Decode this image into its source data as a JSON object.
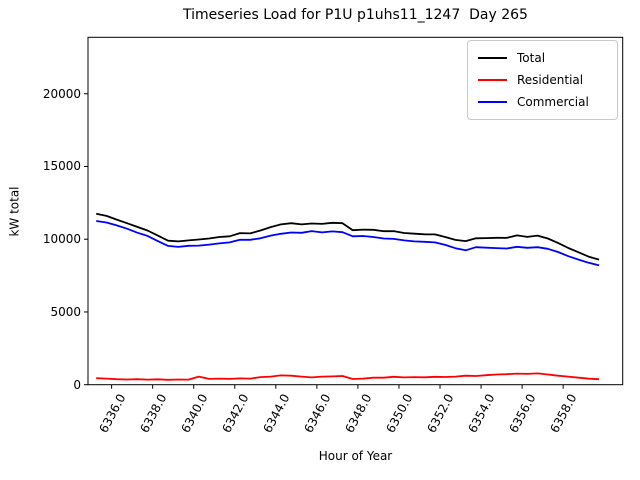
{
  "figure": {
    "title": "Timeseries Load for P1U p1uhs11_1247  Day 265",
    "xlabel": "Hour of Year",
    "ylabel": "kW total"
  },
  "chart_data": {
    "type": "line",
    "title": "Timeseries Load for P1U p1uhs11_1247  Day 265",
    "xlabel": "Hour of Year",
    "ylabel": "kW total",
    "grid": false,
    "legend_position": "upper right",
    "xlim": [
      6334.85,
      6360.9
    ],
    "ylim": [
      0,
      23880
    ],
    "x_ticks": [
      6336,
      6338,
      6340,
      6342,
      6344,
      6346,
      6348,
      6350,
      6352,
      6354,
      6356,
      6358
    ],
    "x_tick_labels": [
      "6336.0",
      "6338.0",
      "6340.0",
      "6342.0",
      "6344.0",
      "6346.0",
      "6348.0",
      "6350.0",
      "6352.0",
      "6354.0",
      "6356.0",
      "6358.0"
    ],
    "y_ticks": [
      0,
      5000,
      10000,
      15000,
      20000
    ],
    "y_tick_labels": [
      "0",
      "5000",
      "10000",
      "15000",
      "20000"
    ],
    "x": [
      6335.25,
      6335.75,
      6336.25,
      6336.75,
      6337.25,
      6337.75,
      6338.25,
      6338.75,
      6339.25,
      6339.75,
      6340.25,
      6340.75,
      6341.25,
      6341.75,
      6342.25,
      6342.75,
      6343.25,
      6343.75,
      6344.25,
      6344.75,
      6345.25,
      6345.75,
      6346.25,
      6346.75,
      6347.25,
      6347.75,
      6348.25,
      6348.75,
      6349.25,
      6349.75,
      6350.25,
      6350.75,
      6351.25,
      6351.75,
      6352.25,
      6352.75,
      6353.25,
      6353.75,
      6354.25,
      6354.75,
      6355.25,
      6355.75,
      6356.25,
      6356.75,
      6357.25,
      6357.75,
      6358.25,
      6358.75,
      6359.25,
      6359.75
    ],
    "series": [
      {
        "name": "Total",
        "color": "#000000",
        "values": [
          11750,
          11600,
          11350,
          11100,
          10850,
          10600,
          10250,
          9900,
          9850,
          9920,
          9980,
          10050,
          10150,
          10200,
          10420,
          10400,
          10600,
          10830,
          11020,
          11100,
          11020,
          11080,
          11050,
          11130,
          11100,
          10620,
          10660,
          10650,
          10550,
          10560,
          10430,
          10380,
          10340,
          10330,
          10150,
          9950,
          9870,
          10060,
          10080,
          10100,
          10090,
          10260,
          10160,
          10250,
          10050,
          9750,
          9400,
          9100,
          8800,
          8600
        ]
      },
      {
        "name": "Residential",
        "color": "#ff0000",
        "values": [
          450,
          420,
          380,
          360,
          380,
          350,
          370,
          340,
          360,
          350,
          560,
          400,
          420,
          400,
          430,
          420,
          520,
          560,
          640,
          620,
          560,
          500,
          560,
          570,
          600,
          390,
          420,
          480,
          480,
          540,
          500,
          520,
          510,
          540,
          530,
          560,
          620,
          600,
          650,
          700,
          720,
          760,
          740,
          780,
          700,
          620,
          560,
          480,
          410,
          380
        ]
      },
      {
        "name": "Commercial",
        "color": "#0000ff",
        "values": [
          11250,
          11150,
          10950,
          10720,
          10450,
          10230,
          9870,
          9540,
          9470,
          9550,
          9560,
          9630,
          9710,
          9780,
          9960,
          9960,
          10060,
          10250,
          10370,
          10460,
          10440,
          10560,
          10470,
          10540,
          10480,
          10200,
          10220,
          10150,
          10050,
          10020,
          9920,
          9850,
          9820,
          9780,
          9610,
          9380,
          9240,
          9450,
          9420,
          9390,
          9360,
          9480,
          9410,
          9450,
          9340,
          9120,
          8830,
          8600,
          8380,
          8200
        ]
      }
    ]
  }
}
